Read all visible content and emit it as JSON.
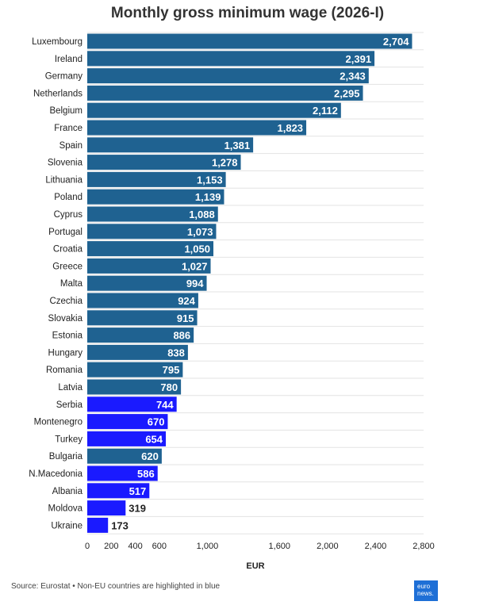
{
  "chart_data": {
    "type": "bar",
    "orientation": "horizontal",
    "title": "Monthly gross minimum wage (2026-I)",
    "xlabel": "EUR",
    "ylabel": "",
    "xlim": [
      0,
      2800
    ],
    "xticks": [
      0,
      200,
      400,
      600,
      1000,
      1600,
      2000,
      2400,
      2800
    ],
    "xtick_labels": [
      "0",
      "200",
      "400",
      "600",
      "1,000",
      "1,600",
      "2,000",
      "2,400",
      "2,800"
    ],
    "categories": [
      "Luxembourg",
      "Ireland",
      "Germany",
      "Netherlands",
      "Belgium",
      "France",
      "Spain",
      "Slovenia",
      "Lithuania",
      "Poland",
      "Cyprus",
      "Portugal",
      "Croatia",
      "Greece",
      "Malta",
      "Czechia",
      "Slovakia",
      "Estonia",
      "Hungary",
      "Romania",
      "Latvia",
      "Serbia",
      "Montenegro",
      "Turkey",
      "Bulgaria",
      "N.Macedonia",
      "Albania",
      "Moldova",
      "Ukraine"
    ],
    "values": [
      2704,
      2391,
      2343,
      2295,
      2112,
      1823,
      1381,
      1278,
      1153,
      1139,
      1088,
      1073,
      1050,
      1027,
      994,
      924,
      915,
      886,
      838,
      795,
      780,
      744,
      670,
      654,
      620,
      586,
      517,
      319,
      173
    ],
    "value_labels": [
      "2,704",
      "2,391",
      "2,343",
      "2,295",
      "2,112",
      "1,823",
      "1,381",
      "1,278",
      "1,153",
      "1,139",
      "1,088",
      "1,073",
      "1,050",
      "1,027",
      "994",
      "924",
      "915",
      "886",
      "838",
      "795",
      "780",
      "744",
      "670",
      "654",
      "620",
      "586",
      "517",
      "319",
      "173"
    ],
    "non_eu": [
      false,
      false,
      false,
      false,
      false,
      false,
      false,
      false,
      false,
      false,
      false,
      false,
      false,
      false,
      false,
      false,
      false,
      false,
      false,
      false,
      false,
      true,
      true,
      true,
      false,
      true,
      true,
      true,
      true
    ],
    "colors": {
      "eu": "#1f6291",
      "non_eu": "#1a1aff",
      "grid": "#e3e3e3",
      "label_outside": "#222222"
    }
  },
  "footer": {
    "source": "Source: Eurostat • Non-EU countries are highlighted in blue",
    "logo_line1": "euro",
    "logo_line2": "news."
  }
}
